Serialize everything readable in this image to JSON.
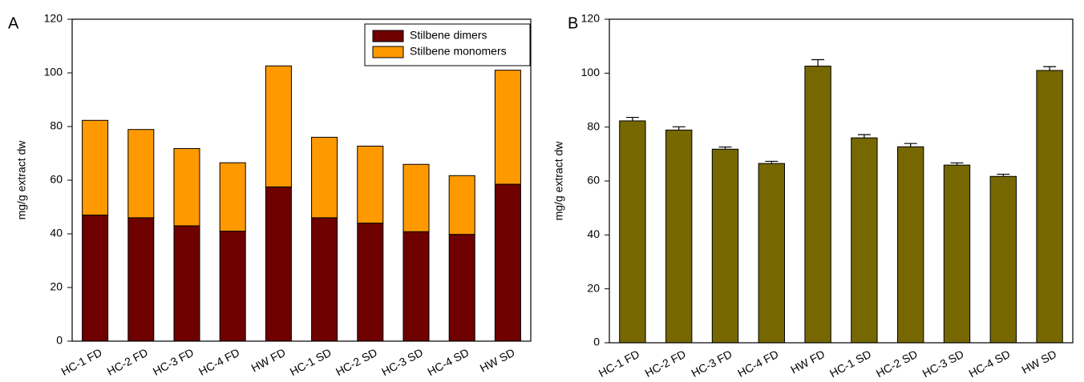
{
  "chart_data": [
    {
      "type": "stacked_bar",
      "panel_label": "A",
      "y_label": "mg/g extract dw",
      "categories": [
        "HC-1 FD",
        "HC-2 FD",
        "HC-3 FD",
        "HC-4 FD",
        "HW FD",
        "HC-1 SD",
        "HC-2 SD",
        "HC-3 SD",
        "HC-4 SD",
        "HW SD"
      ],
      "series": [
        {
          "name": "Stilbene dimers",
          "color": "#6e0000",
          "values": [
            47,
            46,
            43,
            41,
            57.5,
            46,
            44,
            40.8,
            39.8,
            58.5
          ]
        },
        {
          "name": "Stilbene monomers",
          "color": "#ff9900",
          "values": [
            35.3,
            32.9,
            28.8,
            25.5,
            45.1,
            30,
            28.7,
            25.1,
            21.9,
            42.5
          ]
        }
      ],
      "ylim": [
        0,
        120
      ],
      "yticks": [
        0,
        20,
        40,
        60,
        80,
        100,
        120
      ],
      "legend": "upper right"
    },
    {
      "type": "bar",
      "panel_label": "B",
      "y_label": "mg/g extract dw",
      "categories": [
        "HC-1 FD",
        "HC-2 FD",
        "HC-3 FD",
        "HC-4 FD",
        "HW FD",
        "HC-1 SD",
        "HC-2 SD",
        "HC-3 SD",
        "HC-4 SD",
        "HW SD"
      ],
      "values": [
        82.3,
        78.9,
        71.8,
        66.5,
        102.6,
        76,
        72.7,
        65.9,
        61.7,
        101
      ],
      "errors": [
        1.3,
        1.2,
        0.8,
        0.8,
        2.4,
        1.2,
        1.2,
        0.8,
        0.8,
        1.4
      ],
      "color": "#776700",
      "ylim": [
        0,
        120
      ],
      "yticks": [
        0,
        20,
        40,
        60,
        80,
        100,
        120
      ]
    }
  ]
}
